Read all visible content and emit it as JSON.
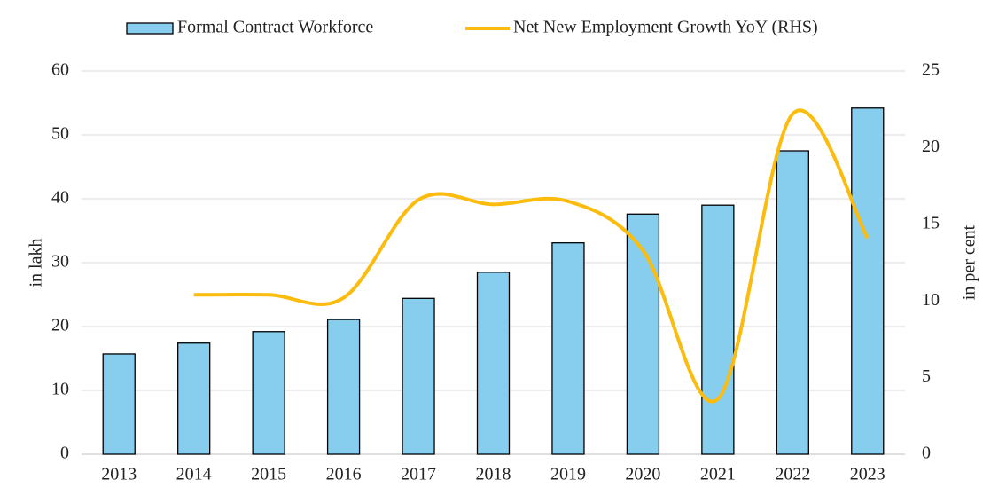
{
  "chart_data": {
    "type": "bar",
    "categories": [
      "2013",
      "2014",
      "2015",
      "2016",
      "2017",
      "2018",
      "2019",
      "2020",
      "2021",
      "2022",
      "2023"
    ],
    "series": [
      {
        "name": "Formal Contract Workforce",
        "type": "bar",
        "color": "#87cdee",
        "values": [
          15.7,
          17.4,
          19.2,
          21.1,
          24.4,
          28.5,
          33.1,
          37.6,
          39.0,
          47.5,
          54.2
        ]
      },
      {
        "name": "Net New Employment Growth YoY (RHS)",
        "type": "line",
        "axis": "y2",
        "color": "#fbbc0d",
        "values": [
          null,
          10.4,
          10.4,
          10.2,
          16.6,
          16.3,
          16.5,
          13.3,
          3.6,
          22.2,
          14.1
        ]
      }
    ],
    "ylabel": "in lakh",
    "y2label": "in per cent",
    "ylim": [
      0,
      60
    ],
    "yticks": [
      0,
      10,
      20,
      30,
      40,
      50,
      60
    ],
    "y2lim": [
      0,
      25
    ],
    "y2ticks": [
      0,
      5,
      10,
      15,
      20,
      25
    ],
    "grid": true,
    "legend": "top"
  }
}
